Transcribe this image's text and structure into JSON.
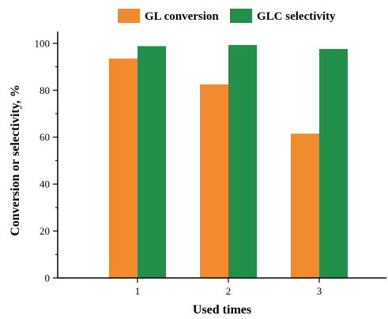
{
  "chart_data": {
    "type": "bar",
    "categories": [
      "1",
      "2",
      "3"
    ],
    "series": [
      {
        "name": "GL conversion",
        "color": "#F28A30",
        "values": [
          93.5,
          82.5,
          61.5
        ]
      },
      {
        "name": "GLC selectivity",
        "color": "#22904A",
        "values": [
          98.8,
          99.3,
          97.6
        ]
      }
    ],
    "xlabel": "Used times",
    "ylabel": "Conversion or selectivity, %",
    "ylim": [
      0,
      105
    ],
    "yticks": [
      "0",
      "20",
      "40",
      "60",
      "80",
      "100"
    ],
    "legend": "top",
    "grid": false
  }
}
